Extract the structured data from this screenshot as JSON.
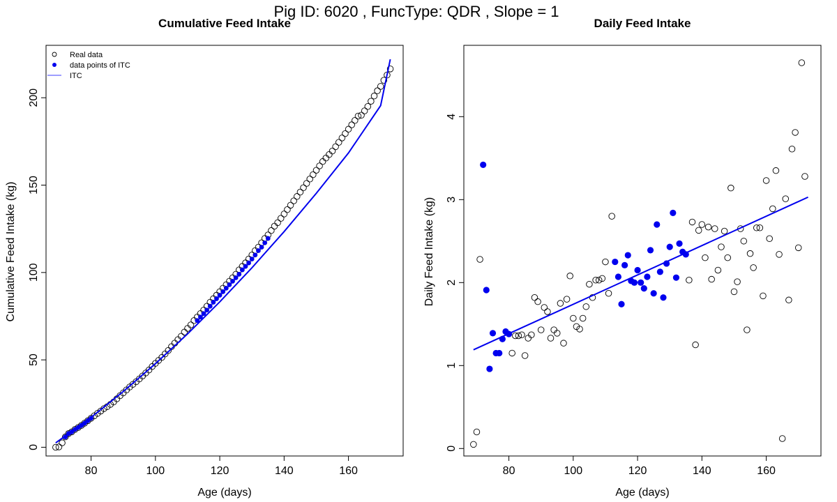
{
  "figure": {
    "title": "Pig ID: 6020 , FuncType: QDR , Slope = 1"
  },
  "colors": {
    "itc_line": "#0000ee",
    "itc_points": "#0000ee",
    "real_points_stroke": "#000000",
    "legend_line": "#7f7fff"
  },
  "chart_data": [
    {
      "type": "scatter",
      "title": "Cumulative Feed Intake",
      "xlabel": "Age (days)",
      "ylabel": "Cumulative Feed Intake (kg)",
      "xlim": [
        66,
        177
      ],
      "ylim": [
        -5,
        230
      ],
      "xticks": [
        80,
        100,
        120,
        140,
        160
      ],
      "yticks": [
        0,
        50,
        100,
        150,
        200
      ],
      "legend": {
        "position": "top-left",
        "entries": [
          {
            "label": "Real data",
            "symbol": "open-circle"
          },
          {
            "label": "data points of ITC",
            "symbol": "filled-circle"
          },
          {
            "label": "ITC",
            "symbol": "line"
          }
        ]
      },
      "series": [
        {
          "name": "Real data",
          "style": "open-circle",
          "x": [
            69,
            70,
            71,
            72,
            73,
            74,
            75,
            76,
            77,
            78,
            79,
            80,
            81,
            82,
            83,
            84,
            85,
            86,
            87,
            88,
            89,
            90,
            91,
            92,
            93,
            94,
            95,
            96,
            97,
            98,
            99,
            100,
            101,
            102,
            103,
            104,
            105,
            106,
            107,
            108,
            109,
            110,
            111,
            112,
            113,
            114,
            115,
            116,
            117,
            118,
            119,
            120,
            121,
            122,
            123,
            124,
            125,
            126,
            127,
            128,
            129,
            130,
            131,
            132,
            133,
            134,
            135,
            136,
            137,
            138,
            139,
            140,
            141,
            142,
            143,
            144,
            145,
            146,
            147,
            148,
            149,
            150,
            151,
            152,
            153,
            154,
            155,
            156,
            157,
            158,
            159,
            160,
            161,
            162,
            163,
            164,
            165,
            166,
            167,
            168,
            169,
            170,
            171,
            172,
            173
          ],
          "y": [
            0,
            0.2,
            2.5,
            5.9,
            7.8,
            8.8,
            10.2,
            11.3,
            12.5,
            13.8,
            15.2,
            16.6,
            18,
            19.4,
            20.7,
            22.1,
            23.2,
            24.5,
            25.9,
            27.7,
            29.5,
            31.1,
            32.8,
            34.5,
            36,
            37.5,
            39.1,
            40.8,
            42.5,
            44.2,
            46.2,
            48,
            49.7,
            51.4,
            53.4,
            55.4,
            57.6,
            59.6,
            61.6,
            63.5,
            65.9,
            68,
            70,
            72.5,
            74.5,
            76.5,
            78.5,
            80.7,
            83,
            85,
            87,
            89,
            91,
            93,
            95,
            97,
            99,
            101.5,
            103.5,
            105.5,
            107.7,
            110,
            112.5,
            114.5,
            117,
            119.5,
            121.5,
            124,
            126.5,
            128.5,
            131,
            133.5,
            136,
            138.5,
            141,
            143.5,
            146,
            148.5,
            151,
            153.5,
            156,
            158.5,
            161,
            163.5,
            165.5,
            167.5,
            169.5,
            172,
            174.5,
            177,
            179.5,
            182,
            184.5,
            187,
            189.5,
            190,
            192.5,
            195,
            198,
            201,
            204,
            206.5,
            210,
            213,
            216.5
          ]
        },
        {
          "name": "data points of ITC",
          "style": "filled-circle",
          "x": [
            72,
            73,
            74,
            75,
            76,
            77,
            78,
            79,
            80,
            113,
            114,
            115,
            116,
            117,
            118,
            119,
            120,
            121,
            122,
            123,
            124,
            125,
            126,
            127,
            128,
            129,
            130,
            131,
            132,
            133,
            134,
            135
          ],
          "y": [
            5.9,
            7.8,
            8.8,
            10.2,
            11.3,
            12.5,
            13.8,
            15.2,
            16.6,
            72.5,
            74.5,
            76.5,
            78.5,
            80.7,
            83,
            85,
            87,
            89,
            91,
            93,
            95,
            97,
            99,
            101.5,
            103.5,
            105.5,
            107.7,
            110,
            112.5,
            114.5,
            117,
            119.5
          ]
        },
        {
          "name": "ITC",
          "style": "line",
          "x": [
            69,
            80,
            90,
            100,
            110,
            120,
            130,
            140,
            150,
            160,
            170,
            173
          ],
          "y": [
            2.5,
            17.1,
            31.9,
            47.8,
            64.9,
            83.2,
            102.7,
            123.4,
            145.3,
            168.4,
            195.5,
            222
          ]
        }
      ]
    },
    {
      "type": "scatter",
      "title": "Daily Feed Intake",
      "xlabel": "Age (days)",
      "ylabel": "Daily Feed Intake (kg)",
      "xlim": [
        66,
        177
      ],
      "ylim": [
        -0.09,
        4.86
      ],
      "xticks": [
        80,
        100,
        120,
        140,
        160
      ],
      "yticks": [
        0,
        1,
        2,
        3,
        4
      ],
      "series": [
        {
          "name": "Real data",
          "style": "open-circle",
          "x": [
            69,
            70,
            71,
            81,
            82,
            83,
            84,
            85,
            86,
            87,
            88,
            89,
            90,
            91,
            92,
            93,
            94,
            95,
            96,
            97,
            98,
            99,
            100,
            101,
            102,
            103,
            104,
            105,
            106,
            107,
            108,
            109,
            110,
            111,
            112,
            136,
            137,
            138,
            139,
            140,
            141,
            142,
            143,
            144,
            145,
            146,
            147,
            148,
            149,
            150,
            151,
            152,
            153,
            154,
            155,
            156,
            157,
            158,
            159,
            160,
            161,
            162,
            163,
            164,
            165,
            166,
            167,
            168,
            169,
            170,
            171,
            172
          ],
          "y": [
            0.05,
            0.2,
            2.28,
            1.15,
            1.36,
            1.36,
            1.37,
            1.12,
            1.33,
            1.37,
            1.82,
            1.77,
            1.43,
            1.7,
            1.65,
            1.33,
            1.43,
            1.39,
            1.75,
            1.27,
            1.8,
            2.08,
            1.57,
            1.47,
            1.44,
            1.57,
            1.71,
            1.98,
            1.82,
            2.03,
            2.03,
            2.05,
            2.25,
            1.87,
            2.8,
            2.03,
            2.73,
            1.25,
            2.63,
            2.7,
            2.3,
            2.67,
            2.04,
            2.65,
            2.15,
            2.43,
            2.62,
            2.3,
            3.14,
            1.89,
            2.01,
            2.65,
            2.5,
            1.43,
            2.35,
            2.18,
            2.66,
            2.66,
            1.84,
            3.23,
            2.53,
            2.89,
            3.35,
            2.34,
            0.12,
            3.01,
            1.79,
            3.61,
            3.81,
            2.42,
            4.65,
            3.28
          ]
        },
        {
          "name": "data points of ITC",
          "style": "filled-circle",
          "x": [
            72,
            73,
            74,
            75,
            76,
            77,
            78,
            79,
            80,
            113,
            114,
            115,
            116,
            117,
            118,
            119,
            120,
            121,
            122,
            123,
            124,
            125,
            126,
            127,
            128,
            129,
            130,
            131,
            132,
            133,
            134,
            135
          ],
          "y": [
            3.42,
            1.91,
            0.96,
            1.39,
            1.15,
            1.15,
            1.32,
            1.41,
            1.38,
            2.25,
            2.07,
            1.74,
            2.21,
            2.33,
            2.02,
            2.0,
            2.15,
            2.0,
            1.93,
            2.07,
            2.39,
            1.87,
            2.7,
            2.13,
            1.82,
            2.23,
            2.43,
            2.84,
            2.06,
            2.47,
            2.37,
            2.34
          ]
        },
        {
          "name": "ITC",
          "style": "line",
          "x": [
            69,
            173
          ],
          "y": [
            1.19,
            3.03
          ]
        }
      ]
    }
  ]
}
